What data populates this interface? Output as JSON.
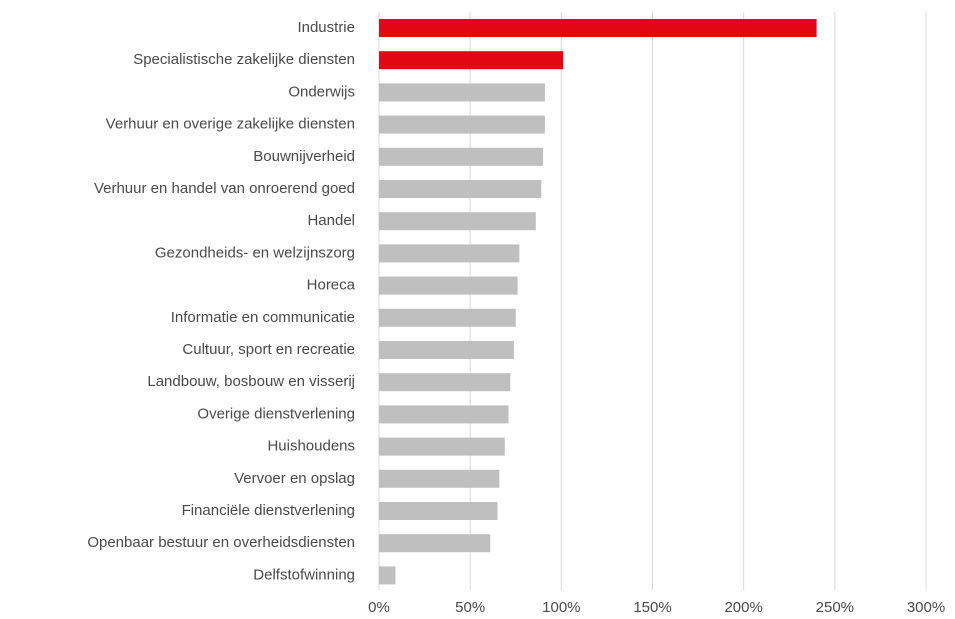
{
  "chart_data": {
    "type": "barh",
    "categories": [
      "Industrie",
      "Specialistische zakelijke diensten",
      "Onderwijs",
      "Verhuur en overige zakelijke diensten",
      "Bouwnijverheid",
      "Verhuur en handel van onroerend goed",
      "Handel",
      "Gezondheids- en welzijnszorg",
      "Horeca",
      "Informatie en communicatie",
      "Cultuur, sport en recreatie",
      "Landbouw, bosbouw en visserij",
      "Overige dienstverlening",
      "Huishoudens",
      "Vervoer en opslag",
      "Financiële dienstverlening",
      "Openbaar bestuur en overheidsdiensten",
      "Delfstofwinning"
    ],
    "values": [
      240,
      101,
      91,
      91,
      90,
      89,
      86,
      77,
      76,
      75,
      74,
      72,
      71,
      69,
      66,
      65,
      61,
      9
    ],
    "colors": [
      "#e30613",
      "#e30613",
      "#bfbfbf",
      "#bfbfbf",
      "#bfbfbf",
      "#bfbfbf",
      "#bfbfbf",
      "#bfbfbf",
      "#bfbfbf",
      "#bfbfbf",
      "#bfbfbf",
      "#bfbfbf",
      "#bfbfbf",
      "#bfbfbf",
      "#bfbfbf",
      "#bfbfbf",
      "#bfbfbf",
      "#bfbfbf"
    ],
    "xlim": [
      0,
      300
    ],
    "xticks": [
      {
        "value": 0,
        "label": "0%"
      },
      {
        "value": 50,
        "label": "50%"
      },
      {
        "value": 100,
        "label": "100%"
      },
      {
        "value": 150,
        "label": "150%"
      },
      {
        "value": 200,
        "label": "200%"
      },
      {
        "value": 250,
        "label": "250%"
      },
      {
        "value": 300,
        "label": "300%"
      }
    ],
    "grid": true
  }
}
